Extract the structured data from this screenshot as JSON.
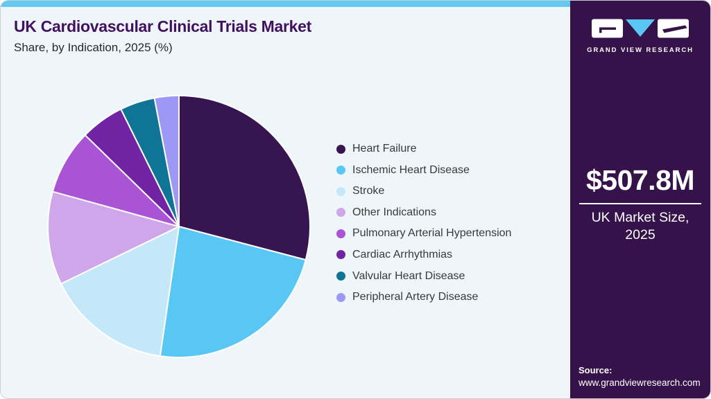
{
  "header": {
    "title": "UK Cardiovascular Clinical Trials Market",
    "subtitle": "Share, by Indication, 2025 (%)"
  },
  "chart_data": {
    "type": "pie",
    "title": "UK Cardiovascular Clinical Trials Market Share, by Indication, 2025 (%)",
    "unit": "%",
    "start_angle_deg": 0,
    "direction": "clockwise",
    "legend_position": "right",
    "values_estimated": true,
    "series": [
      {
        "name": "Heart Failure",
        "value": 29.1,
        "color": "#371551"
      },
      {
        "name": "Ischemic Heart Disease",
        "value": 23.2,
        "color": "#58c7f3"
      },
      {
        "name": "Stroke",
        "value": 15.5,
        "color": "#c5e8f8"
      },
      {
        "name": "Other Indications",
        "value": 11.5,
        "color": "#cfa6e9"
      },
      {
        "name": "Pulmonary Arterial Hypertension",
        "value": 8.0,
        "color": "#a854d4"
      },
      {
        "name": "Cardiac Arrhythmias",
        "value": 5.4,
        "color": "#7023a2"
      },
      {
        "name": "Valvular Heart Disease",
        "value": 4.3,
        "color": "#0f7495"
      },
      {
        "name": "Peripheral Artery Disease",
        "value": 3.0,
        "color": "#9d97f5"
      }
    ]
  },
  "sidebar": {
    "brand_name": "GRAND VIEW RESEARCH",
    "market_size_value": "$507.8M",
    "market_size_label_line1": "UK Market Size,",
    "market_size_label_line2": "2025",
    "source_label": "Source:",
    "source_url": "www.grandviewresearch.com"
  },
  "colors": {
    "accent_bar": "#64c8ef",
    "sidebar_bg": "#36124a",
    "main_bg": "#eff6fa",
    "title_text": "#411061",
    "body_text": "#38383d",
    "card_border": "#c7ccd6",
    "logo_triangle": "#58c7f3",
    "white": "#ffffff"
  }
}
